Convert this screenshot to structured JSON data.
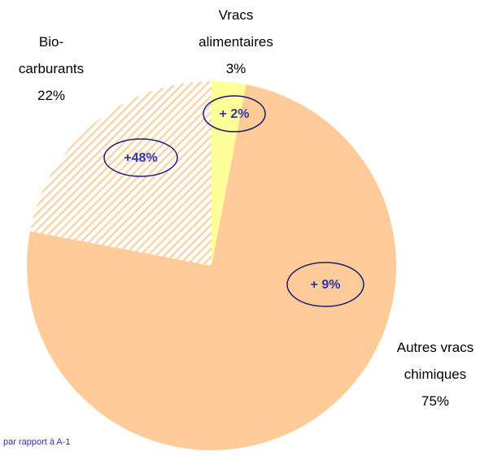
{
  "chart_data": {
    "type": "pie",
    "categories": [
      "Vracs alimentaires",
      "Autres vracs chimiques",
      "Bio-carburants"
    ],
    "values": [
      3,
      75,
      22
    ],
    "value_labels": [
      "3%",
      "75%",
      "22%"
    ],
    "colors": [
      "#ffff99",
      "#ffcc99",
      "#ffcc99"
    ],
    "hatched": [
      false,
      false,
      true
    ],
    "annotations": [
      "+ 2%",
      "+ 9%",
      "+48%"
    ],
    "footnote": "par rapport à A-1"
  }
}
